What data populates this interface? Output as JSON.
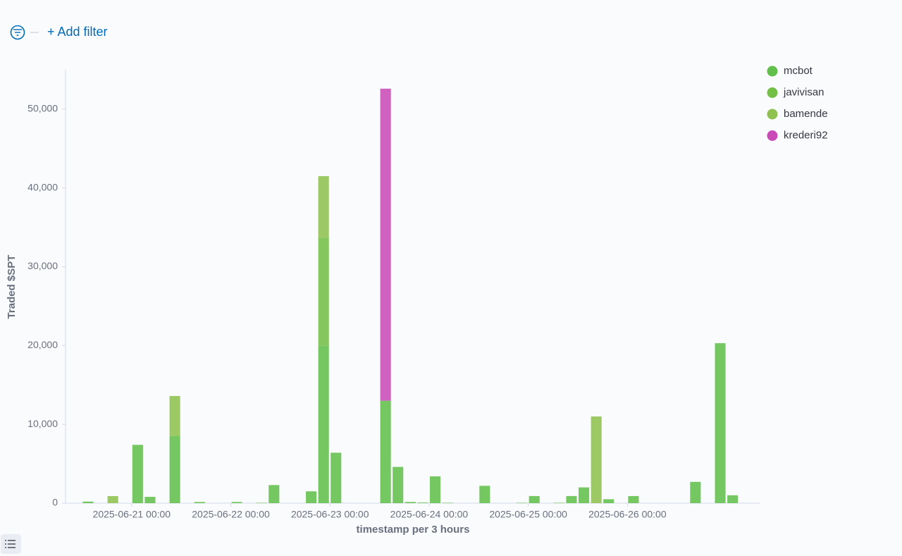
{
  "header": {
    "add_filter": "+ Add filter"
  },
  "chart_data": {
    "type": "bar",
    "stacked": true,
    "y_label": "Traded $SPT",
    "x_label": "timestamp per 3 hours",
    "x": [
      "2025-06-20 12:00",
      "2025-06-20 18:00",
      "2025-06-21 00:00",
      "2025-06-21 03:00",
      "2025-06-21 09:00",
      "2025-06-21 15:00",
      "2025-06-22 00:00",
      "2025-06-22 06:00",
      "2025-06-22 09:00",
      "2025-06-22 18:00",
      "2025-06-22 21:00",
      "2025-06-23 00:00",
      "2025-06-23 12:00",
      "2025-06-23 15:00",
      "2025-06-23 18:00",
      "2025-06-23 21:00",
      "2025-06-24 00:00",
      "2025-06-24 03:00",
      "2025-06-24 12:00",
      "2025-06-24 21:00",
      "2025-06-25 00:00",
      "2025-06-25 06:00",
      "2025-06-25 09:00",
      "2025-06-25 12:00",
      "2025-06-25 15:00",
      "2025-06-25 18:00",
      "2025-06-26 00:00",
      "2025-06-26 15:00",
      "2025-06-26 21:00",
      "2025-06-27 00:00"
    ],
    "series": [
      {
        "name": "mcbot",
        "color": "#62bf4b",
        "values": [
          200,
          null,
          7400,
          800,
          8500,
          150,
          150,
          50,
          2300,
          1500,
          20000,
          6400,
          13000,
          4600,
          150,
          80,
          3400,
          50,
          2200,
          50,
          900,
          50,
          900,
          2000,
          null,
          500,
          900,
          2700,
          20300,
          1000
        ]
      },
      {
        "name": "javivisan",
        "color": "#74bf45",
        "values": [
          null,
          null,
          null,
          null,
          null,
          null,
          null,
          null,
          null,
          null,
          13700,
          null,
          null,
          null,
          null,
          null,
          null,
          null,
          null,
          null,
          null,
          null,
          null,
          null,
          null,
          null,
          null,
          null,
          null,
          null
        ]
      },
      {
        "name": "bamende",
        "color": "#8fc150",
        "values": [
          null,
          900,
          null,
          null,
          5100,
          null,
          null,
          null,
          null,
          null,
          7800,
          null,
          null,
          null,
          null,
          null,
          null,
          null,
          null,
          null,
          null,
          null,
          null,
          null,
          11000,
          null,
          null,
          null,
          null,
          null
        ]
      },
      {
        "name": "krederi92",
        "color": "#c94bb8",
        "values": [
          null,
          null,
          null,
          null,
          null,
          null,
          null,
          null,
          null,
          null,
          null,
          null,
          39600,
          null,
          null,
          null,
          null,
          null,
          null,
          null,
          null,
          null,
          null,
          null,
          null,
          null,
          null,
          null,
          null,
          null
        ]
      }
    ],
    "xlim": [
      "2025-06-20 08:00",
      "2025-06-27 08:00"
    ],
    "xticks": [
      "2025-06-21 00:00",
      "2025-06-22 00:00",
      "2025-06-23 00:00",
      "2025-06-24 00:00",
      "2025-06-25 00:00",
      "2025-06-26 00:00"
    ],
    "ylim": [
      0,
      55000
    ],
    "yticks": [
      0,
      {
        "value": 10000,
        "label": "10,000"
      },
      {
        "value": 20000,
        "label": "20,000"
      },
      {
        "value": 30000,
        "label": "30,000"
      },
      {
        "value": 40000,
        "label": "40,000"
      },
      {
        "value": 50000,
        "label": "50,000"
      }
    ],
    "legend": "top-right",
    "grid": false
  }
}
